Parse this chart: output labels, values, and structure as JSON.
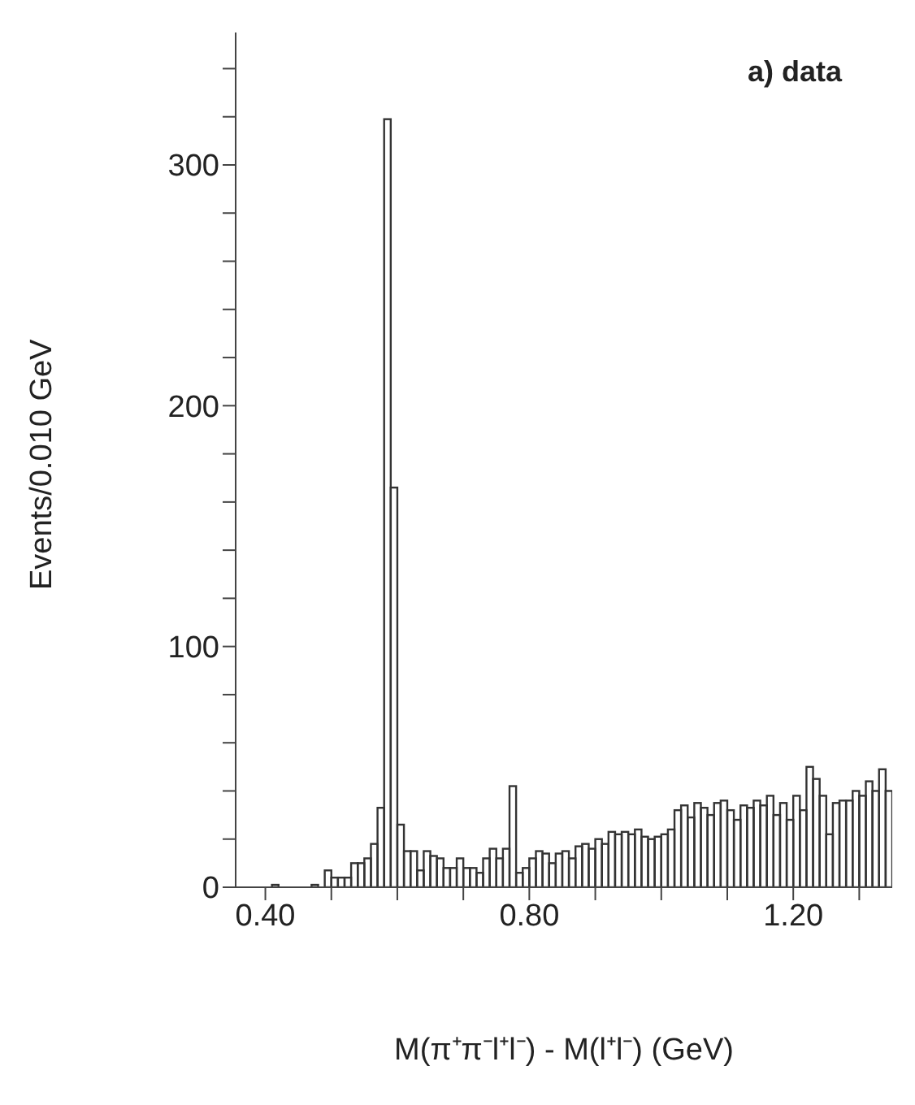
{
  "chart_data": {
    "type": "histogram",
    "title": "a) data",
    "xlabel": "M(π⁺π⁻l⁺l⁻) - M(l⁺l⁻) (GeV)",
    "ylabel": "Events/0.010 GeV",
    "color": "#333333",
    "bins": [
      0.4,
      0.41,
      0.42,
      0.43,
      0.44,
      0.45,
      0.46,
      0.47,
      0.48,
      0.49,
      0.5,
      0.51,
      0.52,
      0.53,
      0.54,
      0.55,
      0.56,
      0.57,
      0.58,
      0.59,
      0.6,
      0.61,
      0.62,
      0.63,
      0.64,
      0.65,
      0.66,
      0.67,
      0.68,
      0.69,
      0.7,
      0.71,
      0.72,
      0.73,
      0.74,
      0.75,
      0.76,
      0.77,
      0.78,
      0.79,
      0.8,
      0.81,
      0.82,
      0.83,
      0.84,
      0.85,
      0.86,
      0.87,
      0.88,
      0.89,
      0.9,
      0.91,
      0.92,
      0.93,
      0.94,
      0.95,
      0.96,
      0.97,
      0.98,
      0.99,
      1.0,
      1.01,
      1.02,
      1.03,
      1.04,
      1.05,
      1.06,
      1.07,
      1.08,
      1.09,
      1.1,
      1.11,
      1.12,
      1.13,
      1.14,
      1.15,
      1.16,
      1.17,
      1.18,
      1.19,
      1.2,
      1.21,
      1.22,
      1.23,
      1.24,
      1.25,
      1.26,
      1.27,
      1.28,
      1.29,
      1.3,
      1.31,
      1.32,
      1.33,
      1.34,
      1.35
    ],
    "values": [
      0,
      1,
      0,
      0,
      0,
      0,
      0,
      1,
      0,
      7,
      4,
      4,
      4,
      10,
      10,
      12,
      18,
      33,
      319,
      166,
      26,
      15,
      15,
      7,
      15,
      13,
      12,
      8,
      8,
      12,
      8,
      8,
      6,
      12,
      16,
      12,
      16,
      42,
      6,
      8,
      12,
      15,
      14,
      10,
      14,
      15,
      12,
      17,
      18,
      16,
      20,
      18,
      23,
      22,
      23,
      22,
      24,
      21,
      20,
      21,
      22,
      24,
      32,
      34,
      29,
      35,
      33,
      30,
      35,
      36,
      32,
      28,
      34,
      33,
      36,
      34,
      38,
      30,
      35,
      28,
      38,
      32,
      50,
      45,
      38,
      22,
      35,
      36,
      36,
      40,
      38,
      44,
      40,
      49,
      40
    ],
    "xlim": [
      0.355,
      1.35
    ],
    "xticks": [
      {
        "value": 0.4,
        "label": "0.40"
      },
      {
        "value": 0.5,
        "label": null
      },
      {
        "value": 0.6,
        "label": null
      },
      {
        "value": 0.7,
        "label": null
      },
      {
        "value": 0.8,
        "label": "0.80"
      },
      {
        "value": 0.9,
        "label": null
      },
      {
        "value": 1.0,
        "label": null
      },
      {
        "value": 1.1,
        "label": null
      },
      {
        "value": 1.2,
        "label": "1.20"
      },
      {
        "value": 1.3,
        "label": null
      }
    ],
    "ylim": [
      0,
      355
    ],
    "yticks": [
      0,
      {
        "value": 20,
        "label": null
      },
      {
        "value": 40,
        "label": null
      },
      {
        "value": 60,
        "label": null
      },
      {
        "value": 80,
        "label": null
      },
      100,
      {
        "value": 120,
        "label": null
      },
      {
        "value": 140,
        "label": null
      },
      {
        "value": 160,
        "label": null
      },
      {
        "value": 180,
        "label": null
      },
      200,
      {
        "value": 220,
        "label": null
      },
      {
        "value": 240,
        "label": null
      },
      {
        "value": 260,
        "label": null
      },
      {
        "value": 280,
        "label": null
      },
      300,
      {
        "value": 320,
        "label": null
      },
      {
        "value": 340,
        "label": null
      }
    ]
  }
}
